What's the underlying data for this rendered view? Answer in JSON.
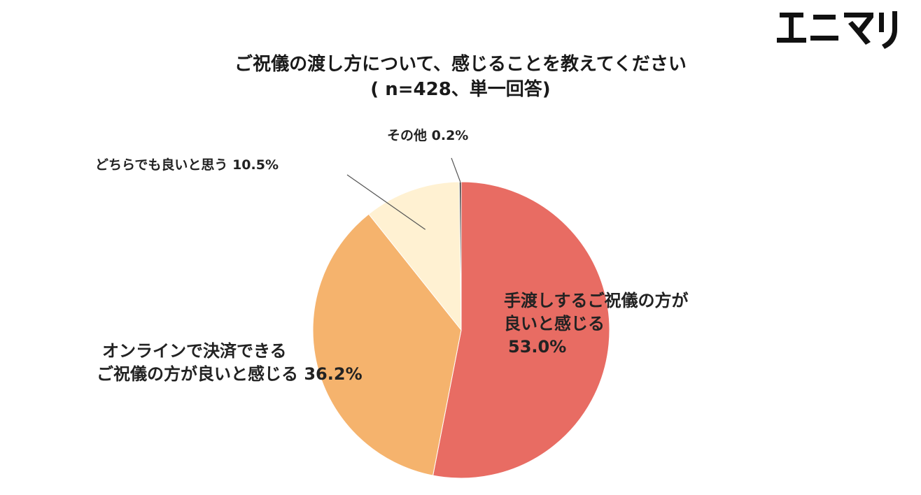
{
  "brand": {
    "logo_text": "エニマリ"
  },
  "chart_data": {
    "type": "pie",
    "title": "ご祝儀の渡し方について、感じることを教えてください",
    "subtitle": "( n=428、単一回答)",
    "slices": [
      {
        "label": "手渡しするご祝儀の方が良いと感じる",
        "label_lines": [
          "手渡しするご祝儀の方が",
          "良いと感じる"
        ],
        "value_text": "53.0%",
        "value": 53.0,
        "color": "#E86C63"
      },
      {
        "label": "オンラインで決済できるご祝儀の方が良いと感じる",
        "label_lines": [
          "オンラインで決済できる",
          "ご祝儀の方が良いと感じる"
        ],
        "value_text": "36.2%",
        "value": 36.2,
        "color": "#F5B36D"
      },
      {
        "label": "どちらでも良いと思う",
        "value_text": "10.5%",
        "value": 10.5,
        "color": "#FFF1D2"
      },
      {
        "label": "その他",
        "value_text": "0.2%",
        "value": 0.2,
        "color": "#333333"
      }
    ]
  }
}
